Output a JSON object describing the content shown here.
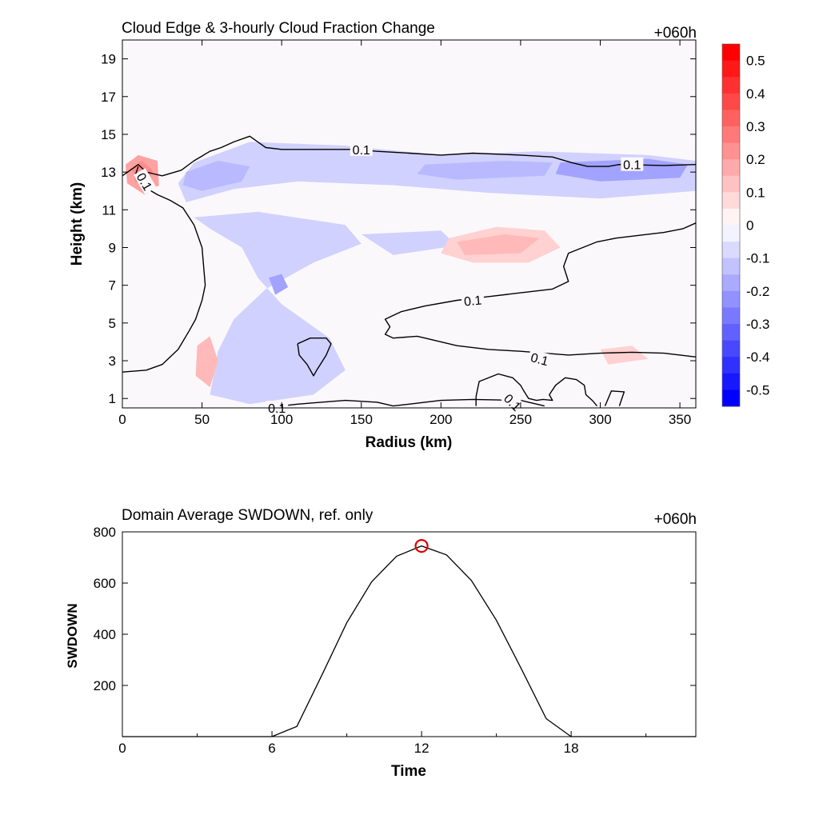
{
  "chart_data": [
    {
      "type": "heatmap",
      "title": "Cloud Edge & 3-hourly Cloud Fraction Change",
      "time_label": "+060h",
      "xlabel": "Radius (km)",
      "ylabel": "Height (km)",
      "xlim": [
        0,
        360
      ],
      "ylim": [
        0.5,
        20
      ],
      "xticks": [
        0,
        50,
        100,
        150,
        200,
        250,
        300,
        350
      ],
      "yticks": [
        1,
        3,
        5,
        7,
        9,
        11,
        13,
        15,
        17,
        19
      ],
      "contour_level": "0.1",
      "colorbar": {
        "levels": [
          0.55,
          0.5,
          0.45,
          0.4,
          0.35,
          0.3,
          0.25,
          0.2,
          0.15,
          0.1,
          0.05,
          0,
          -0.05,
          -0.1,
          -0.15,
          -0.2,
          -0.25,
          -0.3,
          -0.35,
          -0.4,
          -0.45,
          -0.5,
          -0.55
        ],
        "labels": [
          "0.5",
          "0.4",
          "0.3",
          "0.2",
          "0.1",
          "0",
          "-0.1",
          "-0.2",
          "-0.3",
          "-0.4",
          "-0.5"
        ],
        "colors": {
          "positive": "#ff0000",
          "zero": "#ffffff",
          "negative": "#0000ff"
        }
      },
      "regions": [
        {
          "kind": "negative",
          "value": -0.1,
          "polygon": [
            [
              35,
              12.4
            ],
            [
              45,
              13.5
            ],
            [
              80,
              14.6
            ],
            [
              140,
              14.4
            ],
            [
              200,
              13.9
            ],
            [
              260,
              14.1
            ],
            [
              330,
              13.9
            ],
            [
              360,
              13.6
            ],
            [
              360,
              12.0
            ],
            [
              300,
              11.6
            ],
            [
              230,
              11.9
            ],
            [
              170,
              12.3
            ],
            [
              110,
              12.5
            ],
            [
              70,
              12.1
            ],
            [
              40,
              11.4
            ]
          ]
        },
        {
          "kind": "negative",
          "value": -0.15,
          "polygon": [
            [
              190,
              13.4
            ],
            [
              240,
              13.6
            ],
            [
              270,
              13.5
            ],
            [
              265,
              12.8
            ],
            [
              210,
              12.6
            ],
            [
              185,
              12.9
            ]
          ]
        },
        {
          "kind": "negative",
          "value": -0.2,
          "polygon": [
            [
              275,
              13.5
            ],
            [
              330,
              13.7
            ],
            [
              355,
              13.4
            ],
            [
              350,
              12.7
            ],
            [
              300,
              12.5
            ],
            [
              272,
              12.9
            ]
          ]
        },
        {
          "kind": "negative",
          "value": -0.15,
          "polygon": [
            [
              40,
              13.0
            ],
            [
              60,
              13.6
            ],
            [
              80,
              13.3
            ],
            [
              75,
              12.5
            ],
            [
              50,
              12.0
            ],
            [
              38,
              12.3
            ]
          ]
        },
        {
          "kind": "negative",
          "value": -0.1,
          "polygon": [
            [
              45,
              10.6
            ],
            [
              85,
              10.9
            ],
            [
              140,
              10.2
            ],
            [
              150,
              9.2
            ],
            [
              120,
              8.2
            ],
            [
              90,
              6.8
            ],
            [
              70,
              5.2
            ],
            [
              60,
              3.5
            ],
            [
              55,
              1.2
            ],
            [
              80,
              0.7
            ],
            [
              120,
              1.2
            ],
            [
              140,
              2.5
            ],
            [
              130,
              4.2
            ],
            [
              100,
              6.0
            ],
            [
              85,
              7.4
            ],
            [
              75,
              9.0
            ],
            [
              55,
              10.0
            ]
          ]
        },
        {
          "kind": "negative",
          "value": -0.2,
          "polygon": [
            [
              92,
              7.4
            ],
            [
              100,
              7.6
            ],
            [
              104,
              6.9
            ],
            [
              96,
              6.5
            ]
          ]
        },
        {
          "kind": "negative",
          "value": -0.1,
          "polygon": [
            [
              150,
              9.7
            ],
            [
              200,
              9.9
            ],
            [
              210,
              9.1
            ],
            [
              170,
              8.6
            ]
          ]
        },
        {
          "kind": "positive",
          "value": 0.1,
          "polygon": [
            [
              205,
              9.5
            ],
            [
              235,
              10.1
            ],
            [
              265,
              9.9
            ],
            [
              275,
              9.0
            ],
            [
              255,
              8.2
            ],
            [
              220,
              8.2
            ],
            [
              200,
              8.7
            ]
          ]
        },
        {
          "kind": "positive",
          "value": 0.15,
          "polygon": [
            [
              210,
              9.3
            ],
            [
              240,
              9.7
            ],
            [
              262,
              9.5
            ],
            [
              250,
              8.7
            ],
            [
              215,
              8.6
            ]
          ]
        },
        {
          "kind": "positive",
          "value": 0.2,
          "polygon": [
            [
              2,
              13.4
            ],
            [
              10,
              13.9
            ],
            [
              22,
              13.6
            ],
            [
              23,
              12.3
            ],
            [
              14,
              11.8
            ],
            [
              3,
              12.4
            ]
          ]
        },
        {
          "kind": "positive",
          "value": 0.25,
          "polygon": [
            [
              6,
              13.2
            ],
            [
              12,
              13.6
            ],
            [
              19,
              13.1
            ],
            [
              16,
              12.3
            ],
            [
              8,
              12.5
            ]
          ]
        },
        {
          "kind": "positive",
          "value": 0.15,
          "polygon": [
            [
              47,
              3.8
            ],
            [
              55,
              4.3
            ],
            [
              60,
              3.0
            ],
            [
              55,
              1.6
            ],
            [
              46,
              2.2
            ]
          ]
        },
        {
          "kind": "positive",
          "value": 0.1,
          "polygon": [
            [
              300,
              3.6
            ],
            [
              320,
              3.8
            ],
            [
              330,
              3.1
            ],
            [
              305,
              2.8
            ]
          ]
        }
      ],
      "contours": [
        {
          "label": "0.1",
          "points": [
            [
              0,
              12.8
            ],
            [
              10,
              13.4
            ],
            [
              15,
              13.0
            ],
            [
              20,
              12.9
            ],
            [
              25,
              12.8
            ],
            [
              37,
              13.1
            ],
            [
              45,
              13.6
            ],
            [
              55,
              14.1
            ],
            [
              62,
              14.3
            ],
            [
              70,
              14.6
            ],
            [
              80,
              14.9
            ],
            [
              85,
              14.6
            ],
            [
              90,
              14.3
            ],
            [
              100,
              14.2
            ],
            [
              130,
              14.2
            ],
            [
              145,
              14.2
            ],
            [
              160,
              14.1
            ],
            [
              180,
              14.0
            ],
            [
              200,
              13.9
            ],
            [
              220,
              14.0
            ],
            [
              250,
              13.9
            ],
            [
              270,
              13.8
            ],
            [
              282,
              13.5
            ],
            [
              292,
              13.3
            ],
            [
              305,
              13.3
            ],
            [
              312,
              13.4
            ],
            [
              340,
              13.35
            ],
            [
              360,
              13.4
            ]
          ]
        },
        {
          "label": "0.1",
          "points": [
            [
              10,
              13.3
            ],
            [
              8,
              12.8
            ],
            [
              12,
              12.3
            ],
            [
              22,
              11.8
            ],
            [
              30,
              11.5
            ],
            [
              38,
              11.1
            ],
            [
              45,
              10.2
            ],
            [
              50,
              9.0
            ],
            [
              52,
              7.0
            ],
            [
              50,
              6.2
            ],
            [
              46,
              5.2
            ],
            [
              42,
              4.6
            ],
            [
              35,
              3.6
            ],
            [
              25,
              2.8
            ],
            [
              15,
              2.5
            ],
            [
              0,
              2.4
            ]
          ]
        },
        {
          "label": "0.1",
          "points": [
            [
              360,
              10.3
            ],
            [
              352,
              10.0
            ],
            [
              340,
              9.8
            ],
            [
              320,
              9.6
            ],
            [
              310,
              9.5
            ],
            [
              298,
              9.3
            ],
            [
              280,
              8.7
            ],
            [
              277,
              8.0
            ],
            [
              280,
              7.2
            ],
            [
              270,
              6.8
            ],
            [
              250,
              6.6
            ],
            [
              230,
              6.4
            ],
            [
              210,
              6.2
            ],
            [
              190,
              5.9
            ],
            [
              175,
              5.6
            ],
            [
              170,
              5.4
            ],
            [
              165,
              5.2
            ],
            [
              168,
              4.8
            ],
            [
              165,
              4.4
            ],
            [
              170,
              4.2
            ],
            [
              185,
              4.3
            ],
            [
              190,
              4.2
            ],
            [
              200,
              4.0
            ],
            [
              210,
              3.8
            ],
            [
              230,
              3.6
            ],
            [
              250,
              3.5
            ],
            [
              265,
              3.4
            ],
            [
              280,
              3.3
            ],
            [
              300,
              3.4
            ],
            [
              320,
              3.45
            ],
            [
              340,
              3.4
            ],
            [
              360,
              3.2
            ]
          ]
        },
        {
          "label": "0.1",
          "points": [
            [
              110,
              3.9
            ],
            [
              118,
              4.2
            ],
            [
              128,
              4.2
            ],
            [
              131,
              3.9
            ],
            [
              128,
              3.3
            ],
            [
              125,
              2.9
            ],
            [
              122,
              2.5
            ],
            [
              120,
              2.2
            ],
            [
              116,
              2.8
            ],
            [
              111,
              3.3
            ],
            [
              110,
              3.9
            ]
          ]
        },
        {
          "label": "0.1",
          "points": [
            [
              100,
              0.6
            ],
            [
              110,
              0.7
            ],
            [
              140,
              0.9
            ],
            [
              160,
              0.8
            ],
            [
              170,
              0.6
            ],
            [
              180,
              0.7
            ],
            [
              200,
              0.9
            ],
            [
              220,
              0.95
            ],
            [
              250,
              0.9
            ],
            [
              265,
              0.6
            ]
          ]
        },
        {
          "label": "0.1",
          "points": [
            [
              222,
              0.6
            ],
            [
              222,
              1.1
            ],
            [
              224,
              1.9
            ],
            [
              236,
              2.3
            ],
            [
              245,
              2.1
            ],
            [
              250,
              1.7
            ],
            [
              252,
              1.4
            ],
            [
              255,
              1.0
            ],
            [
              260,
              0.9
            ],
            [
              264,
              0.95
            ],
            [
              270,
              0.9
            ],
            [
              268,
              1.2
            ],
            [
              272,
              1.7
            ],
            [
              278,
              2.1
            ],
            [
              285,
              2.0
            ],
            [
              290,
              1.7
            ],
            [
              291,
              1.2
            ],
            [
              295,
              0.9
            ],
            [
              298,
              0.6
            ]
          ]
        },
        {
          "label": "0.1",
          "points": [
            [
              303,
              0.6
            ],
            [
              307,
              1.4
            ],
            [
              315,
              1.35
            ],
            [
              312,
              0.6
            ]
          ]
        }
      ],
      "contour_labels": [
        {
          "text": "0.1",
          "x": 150,
          "y": 14.2,
          "angle": 0
        },
        {
          "text": "0.1",
          "x": 320,
          "y": 13.4,
          "angle": 0
        },
        {
          "text": "0.1",
          "x": 14,
          "y": 12.5,
          "angle": 60
        },
        {
          "text": "0.1",
          "x": 220,
          "y": 6.2,
          "angle": -5
        },
        {
          "text": "0.1",
          "x": 262,
          "y": 3.1,
          "angle": 15
        },
        {
          "text": "0.1",
          "x": 245,
          "y": 0.8,
          "angle": 45
        },
        {
          "text": "0.1",
          "x": 97,
          "y": 0.5,
          "angle": 0
        }
      ]
    },
    {
      "type": "line",
      "title": "Domain Average SWDOWN, ref. only",
      "time_label": "+060h",
      "xlabel": "Time",
      "ylabel": "SWDOWN",
      "xlim": [
        0,
        23
      ],
      "ylim": [
        0,
        800
      ],
      "xticks": [
        0,
        6,
        12,
        18
      ],
      "yticks": [
        200,
        400,
        600,
        800
      ],
      "series": [
        {
          "x": [
            0,
            6,
            7,
            8,
            9,
            10,
            11,
            12,
            13,
            14,
            15,
            16,
            17,
            18,
            23
          ],
          "values": [
            0,
            0,
            40,
            240,
            445,
            605,
            705,
            745,
            710,
            610,
            455,
            265,
            70,
            0,
            0
          ]
        }
      ],
      "marker": {
        "x": 12,
        "value": 745,
        "color": "#e00000"
      }
    }
  ]
}
